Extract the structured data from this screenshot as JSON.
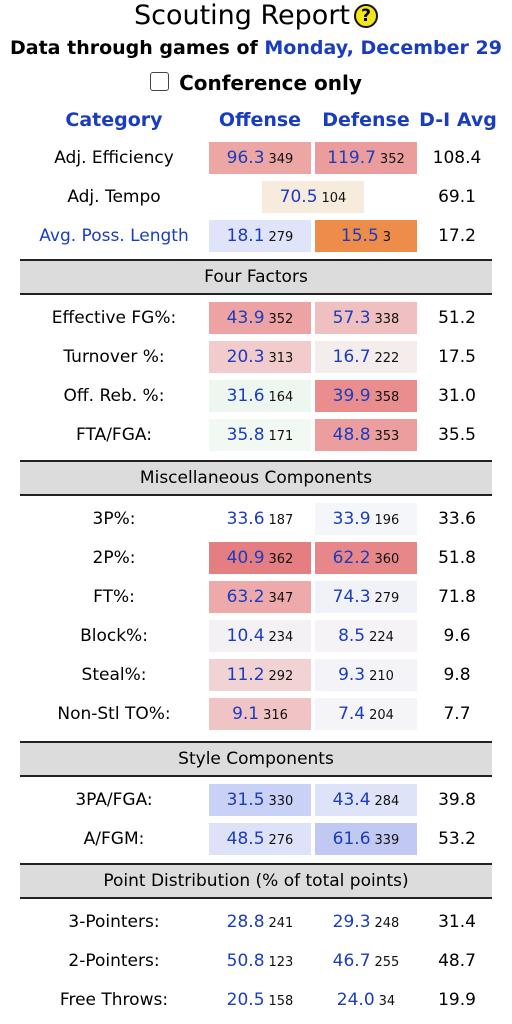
{
  "title": "Scouting Report",
  "help_glyph": "?",
  "subtitle": {
    "prefix": "Data through games of ",
    "date": "Monday, December 29"
  },
  "conference_only": {
    "label": "Conference only",
    "checked": false
  },
  "columns": {
    "category": "Category",
    "offense": "Offense",
    "defense": "Defense",
    "avg": "D-I Avg"
  },
  "rows": [
    {
      "label": "Adj. Efficiency",
      "off": {
        "v": "96.3",
        "r": "349",
        "bg": "#eca6a4"
      },
      "def": {
        "v": "119.7",
        "r": "352",
        "bg": "#eb9d9d"
      },
      "avg": "108.4"
    },
    {
      "label": "Adj. Tempo",
      "merged": true,
      "off": {
        "v": "70.5",
        "r": "104",
        "bg": "#f6ebdd"
      },
      "avg": "69.1"
    },
    {
      "label": "Avg. Poss. Length",
      "link": true,
      "off": {
        "v": "18.1",
        "r": "279",
        "bg": "#dfe4fb"
      },
      "def": {
        "v": "15.5",
        "r": "3",
        "bg": "#ee8d4a"
      },
      "avg": "17.2"
    }
  ],
  "sections": [
    {
      "title": "Four Factors",
      "rows": [
        {
          "label": "Effective FG%:",
          "off": {
            "v": "43.9",
            "r": "352",
            "bg": "#eda3a3"
          },
          "def": {
            "v": "57.3",
            "r": "338",
            "bg": "#f0c0c0"
          },
          "avg": "51.2"
        },
        {
          "label": "Turnover %:",
          "off": {
            "v": "20.3",
            "r": "313",
            "bg": "#f2cccc"
          },
          "def": {
            "v": "16.7",
            "r": "222",
            "bg": "#f5ecec"
          },
          "avg": "17.5"
        },
        {
          "label": "Off. Reb. %:",
          "off": {
            "v": "31.6",
            "r": "164",
            "bg": "#eef7ef"
          },
          "def": {
            "v": "39.9",
            "r": "358",
            "bg": "#e98d8f"
          },
          "avg": "31.0"
        },
        {
          "label": "FTA/FGA:",
          "off": {
            "v": "35.8",
            "r": "171",
            "bg": "#f2f8f2"
          },
          "def": {
            "v": "48.8",
            "r": "353",
            "bg": "#ec9e9e"
          },
          "avg": "35.5"
        }
      ]
    },
    {
      "title": "Miscellaneous Components",
      "rows": [
        {
          "label": "3P%:",
          "off": {
            "v": "33.6",
            "r": "187",
            "bg": "#ffffff"
          },
          "def": {
            "v": "33.9",
            "r": "196",
            "bg": "#f5f6f9"
          },
          "avg": "33.6"
        },
        {
          "label": "2P%:",
          "off": {
            "v": "40.9",
            "r": "362",
            "bg": "#e57e80"
          },
          "def": {
            "v": "62.2",
            "r": "360",
            "bg": "#e88789"
          },
          "avg": "51.8"
        },
        {
          "label": "FT%:",
          "off": {
            "v": "63.2",
            "r": "347",
            "bg": "#eeaaab"
          },
          "def": {
            "v": "74.3",
            "r": "279",
            "bg": "#f1f2f8"
          },
          "avg": "71.8"
        },
        {
          "label": "Block%:",
          "off": {
            "v": "10.4",
            "r": "234",
            "bg": "#f3f1f4"
          },
          "def": {
            "v": "8.5",
            "r": "224",
            "bg": "#f5f3f5"
          },
          "avg": "9.6"
        },
        {
          "label": "Steal%:",
          "off": {
            "v": "11.2",
            "r": "292",
            "bg": "#f2d3d4"
          },
          "def": {
            "v": "9.3",
            "r": "210",
            "bg": "#f4f4f8"
          },
          "avg": "9.8"
        },
        {
          "label": "Non-Stl TO%:",
          "off": {
            "v": "9.1",
            "r": "316",
            "bg": "#f0c3c4"
          },
          "def": {
            "v": "7.4",
            "r": "204",
            "bg": "#f5f5f8"
          },
          "avg": "7.7"
        }
      ]
    },
    {
      "title": "Style Components",
      "rows": [
        {
          "label": "3PA/FGA:",
          "off": {
            "v": "31.5",
            "r": "330",
            "bg": "#c9d1f6"
          },
          "def": {
            "v": "43.4",
            "r": "284",
            "bg": "#dfe3f8"
          },
          "avg": "39.8"
        },
        {
          "label": "A/FGM:",
          "off": {
            "v": "48.5",
            "r": "276",
            "bg": "#dde2f8"
          },
          "def": {
            "v": "61.6",
            "r": "339",
            "bg": "#c1c8f2"
          },
          "avg": "53.2"
        }
      ]
    },
    {
      "title": "Point Distribution (% of total points)",
      "rows": [
        {
          "label": "3-Pointers:",
          "off": {
            "v": "28.8",
            "r": "241",
            "bg": "#ffffff"
          },
          "def": {
            "v": "29.3",
            "r": "248",
            "bg": "#ffffff"
          },
          "avg": "31.4"
        },
        {
          "label": "2-Pointers:",
          "off": {
            "v": "50.8",
            "r": "123",
            "bg": "#ffffff"
          },
          "def": {
            "v": "46.7",
            "r": "255",
            "bg": "#ffffff"
          },
          "avg": "48.7"
        },
        {
          "label": "Free Throws:",
          "off": {
            "v": "20.5",
            "r": "158",
            "bg": "#ffffff"
          },
          "def": {
            "v": "24.0",
            "r": "34",
            "bg": "#ffffff"
          },
          "avg": "19.9"
        }
      ]
    }
  ]
}
